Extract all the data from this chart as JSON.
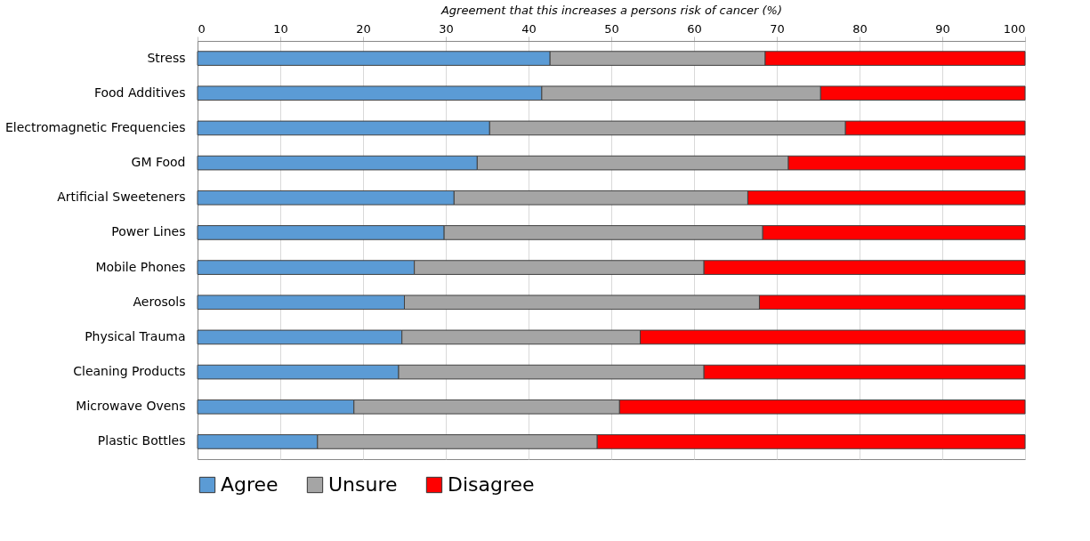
{
  "chart_data": {
    "type": "bar",
    "orientation": "horizontal",
    "stacked": true,
    "xlabel": "Agreement that this increases a persons risk of cancer (%)",
    "categories": [
      "Stress",
      "Food Additives",
      "Electromagnetic Frequencies",
      "GM Food",
      "Artificial Sweeteners",
      "Power Lines",
      "Mobile Phones",
      "Aerosols",
      "Physical Trauma",
      "Cleaning Products",
      "Microwave Ovens",
      "Plastic Bottles"
    ],
    "series": [
      {
        "name": "Agree",
        "color": "#5b9bd5",
        "values": [
          42.6,
          41.6,
          35.3,
          33.8,
          31.0,
          29.8,
          26.2,
          25.0,
          24.7,
          24.3,
          18.9,
          14.5
        ]
      },
      {
        "name": "Unsure",
        "color": "#a5a5a5",
        "values": [
          26.0,
          33.7,
          43.0,
          37.6,
          35.5,
          38.5,
          35.0,
          42.9,
          28.8,
          36.9,
          32.1,
          33.8
        ]
      },
      {
        "name": "Disagree",
        "color": "#ff0000",
        "values": [
          31.4,
          24.7,
          21.7,
          28.6,
          33.5,
          31.7,
          38.8,
          32.1,
          46.5,
          38.8,
          49.0,
          51.7
        ]
      }
    ],
    "xlim": [
      0,
      100
    ],
    "xticks": [
      0,
      10,
      20,
      30,
      40,
      50,
      60,
      70,
      80,
      90,
      100
    ],
    "grid": "x",
    "legend": "bottom"
  }
}
